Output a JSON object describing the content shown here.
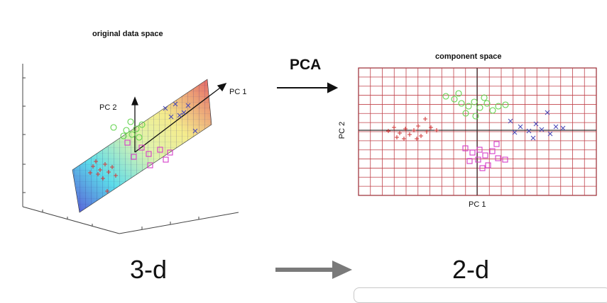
{
  "left_panel": {
    "title": "original data space",
    "pc1_label": "PC 1",
    "pc2_label": "PC 2"
  },
  "middle": {
    "pca_label": "PCA"
  },
  "right_panel": {
    "title": "component space",
    "x_label": "PC 1",
    "y_label": "PC 2"
  },
  "bottom": {
    "from_label": "3-d",
    "to_label": "2-d"
  },
  "colors": {
    "red_cluster": "#d13b3b",
    "green_cluster": "#5fd24a",
    "magenta_cluster": "#d63cc8",
    "blue_cluster": "#4a4ab8",
    "grid": "#c0424a",
    "arrow_gray": "#7a7a7a"
  },
  "icons": {
    "pca_arrow": "arrow-right-icon",
    "dimension_arrow": "arrow-right-icon"
  }
}
